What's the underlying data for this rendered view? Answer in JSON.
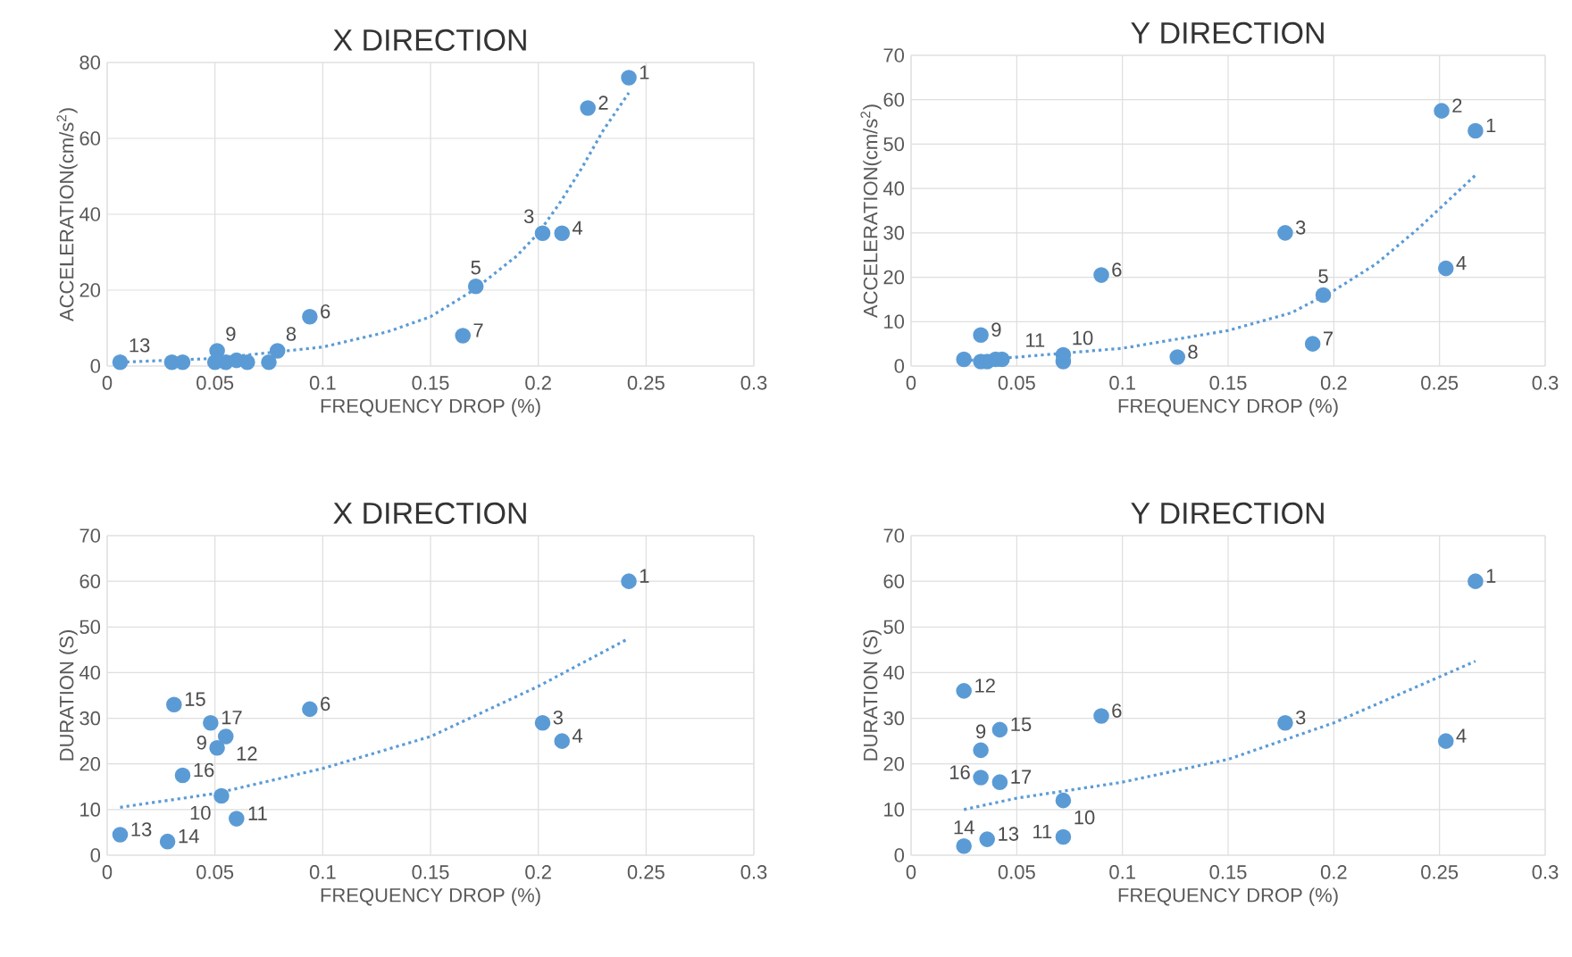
{
  "chart_data": [
    {
      "type": "scatter",
      "title": "X DIRECTION",
      "xlabel": "FREQUENCY DROP (%)",
      "ylabel": "ACCELERATION(cm/s$^{2}$)",
      "xlim": [
        0,
        0.3
      ],
      "ylim": [
        0,
        80
      ],
      "xticks": [
        0,
        0.05,
        0.1,
        0.15,
        0.2,
        0.25,
        0.3
      ],
      "yticks": [
        0,
        20,
        40,
        60,
        80
      ],
      "grid": true,
      "series": [
        {
          "marker": "circle",
          "color": "#5b9bd5",
          "x": [
            0.242,
            0.223,
            0.202,
            0.211,
            0.171,
            0.094,
            0.165,
            0.079,
            0.051,
            0.006,
            0.03,
            0.035,
            0.05,
            0.055,
            0.06,
            0.065,
            0.075
          ],
          "values": [
            76,
            68,
            35,
            35,
            21,
            13,
            8,
            4,
            4,
            1,
            1,
            1,
            1,
            1,
            1.5,
            1,
            1
          ]
        },
        {
          "type": "line",
          "line_style": "dotted",
          "marker": "none",
          "color": "#5b9bd5",
          "x": [
            0.006,
            0.05,
            0.1,
            0.13,
            0.15,
            0.17,
            0.19,
            0.2,
            0.21,
            0.22,
            0.23,
            0.242
          ],
          "values": [
            1,
            2,
            5,
            9,
            13,
            20,
            29,
            35,
            43,
            52,
            62,
            72
          ]
        }
      ],
      "annotations": [
        {
          "text": "1",
          "x": 0.242,
          "y": 76
        },
        {
          "text": "2",
          "x": 0.223,
          "y": 68
        },
        {
          "text": "3",
          "x": 0.202,
          "y": 35
        },
        {
          "text": "4",
          "x": 0.211,
          "y": 35
        },
        {
          "text": "5",
          "x": 0.171,
          "y": 21
        },
        {
          "text": "6",
          "x": 0.094,
          "y": 13
        },
        {
          "text": "7",
          "x": 0.165,
          "y": 8
        },
        {
          "text": "8",
          "x": 0.079,
          "y": 4
        },
        {
          "text": "9",
          "x": 0.051,
          "y": 4
        },
        {
          "text": "13",
          "x": 0.006,
          "y": 1
        }
      ]
    },
    {
      "type": "scatter",
      "title": "Y DIRECTION",
      "xlabel": "FREQUENCY DROP (%)",
      "ylabel": "ACCELERATION(cm/s$^{2}$)",
      "xlim": [
        0,
        0.3
      ],
      "ylim": [
        0,
        70
      ],
      "xticks": [
        0,
        0.05,
        0.1,
        0.15,
        0.2,
        0.25,
        0.3
      ],
      "yticks": [
        0,
        10,
        20,
        30,
        40,
        50,
        60,
        70
      ],
      "grid": true,
      "series": [
        {
          "marker": "circle",
          "color": "#5b9bd5",
          "x": [
            0.267,
            0.251,
            0.177,
            0.253,
            0.195,
            0.09,
            0.19,
            0.126,
            0.033,
            0.072,
            0.072,
            0.025,
            0.033,
            0.036,
            0.04,
            0.043
          ],
          "values": [
            53,
            57.5,
            30,
            22,
            16,
            20.5,
            5,
            2,
            7,
            2.5,
            1,
            1.5,
            1,
            1,
            1.5,
            1.5
          ]
        },
        {
          "type": "line",
          "line_style": "dotted",
          "marker": "none",
          "color": "#5b9bd5",
          "x": [
            0.025,
            0.05,
            0.1,
            0.15,
            0.18,
            0.2,
            0.22,
            0.24,
            0.267
          ],
          "values": [
            1.2,
            2,
            4,
            8,
            12,
            17,
            23,
            31,
            43
          ]
        }
      ],
      "annotations": [
        {
          "text": "1",
          "x": 0.267,
          "y": 53
        },
        {
          "text": "2",
          "x": 0.251,
          "y": 57.5
        },
        {
          "text": "3",
          "x": 0.177,
          "y": 30
        },
        {
          "text": "4",
          "x": 0.253,
          "y": 22
        },
        {
          "text": "5",
          "x": 0.195,
          "y": 16
        },
        {
          "text": "6",
          "x": 0.09,
          "y": 20.5
        },
        {
          "text": "7",
          "x": 0.19,
          "y": 5
        },
        {
          "text": "8",
          "x": 0.126,
          "y": 2
        },
        {
          "text": "9",
          "x": 0.033,
          "y": 7
        },
        {
          "text": "10",
          "x": 0.072,
          "y": 2.5
        },
        {
          "text": "11",
          "x": 0.072,
          "y": 1
        }
      ]
    },
    {
      "type": "scatter",
      "title": "X DIRECTION",
      "xlabel": "FREQUENCY DROP (%)",
      "ylabel": "DURATION (S)",
      "xlim": [
        0,
        0.3
      ],
      "ylim": [
        0,
        70
      ],
      "xticks": [
        0,
        0.05,
        0.1,
        0.15,
        0.2,
        0.25,
        0.3
      ],
      "yticks": [
        0,
        10,
        20,
        30,
        40,
        50,
        60,
        70
      ],
      "grid": true,
      "series": [
        {
          "marker": "circle",
          "color": "#5b9bd5",
          "x": [
            0.242,
            0.202,
            0.211,
            0.094,
            0.031,
            0.048,
            0.055,
            0.051,
            0.035,
            0.053,
            0.06,
            0.006,
            0.028
          ],
          "values": [
            60,
            29,
            25,
            32,
            33,
            29,
            26,
            23.5,
            17.5,
            13,
            8,
            4.5,
            3
          ]
        },
        {
          "type": "line",
          "line_style": "dotted",
          "marker": "none",
          "color": "#5b9bd5",
          "x": [
            0.006,
            0.05,
            0.1,
            0.15,
            0.2,
            0.242
          ],
          "values": [
            10.5,
            13.5,
            19,
            26,
            37,
            47.5
          ]
        }
      ],
      "annotations": [
        {
          "text": "1",
          "x": 0.242,
          "y": 60
        },
        {
          "text": "3",
          "x": 0.202,
          "y": 29
        },
        {
          "text": "4",
          "x": 0.211,
          "y": 25
        },
        {
          "text": "6",
          "x": 0.094,
          "y": 32
        },
        {
          "text": "15",
          "x": 0.031,
          "y": 33
        },
        {
          "text": "17",
          "x": 0.048,
          "y": 29
        },
        {
          "text": "12",
          "x": 0.055,
          "y": 26
        },
        {
          "text": "9",
          "x": 0.051,
          "y": 23.5
        },
        {
          "text": "16",
          "x": 0.035,
          "y": 17.5
        },
        {
          "text": "10",
          "x": 0.053,
          "y": 13
        },
        {
          "text": "11",
          "x": 0.06,
          "y": 8
        },
        {
          "text": "13",
          "x": 0.006,
          "y": 4.5
        },
        {
          "text": "14",
          "x": 0.028,
          "y": 3
        }
      ]
    },
    {
      "type": "scatter",
      "title": "Y DIRECTION",
      "xlabel": "FREQUENCY DROP (%)",
      "ylabel": "DURATION (S)",
      "xlim": [
        0,
        0.3
      ],
      "ylim": [
        0,
        70
      ],
      "xticks": [
        0,
        0.05,
        0.1,
        0.15,
        0.2,
        0.25,
        0.3
      ],
      "yticks": [
        0,
        10,
        20,
        30,
        40,
        50,
        60,
        70
      ],
      "grid": true,
      "series": [
        {
          "marker": "circle",
          "color": "#5b9bd5",
          "x": [
            0.267,
            0.177,
            0.253,
            0.09,
            0.025,
            0.042,
            0.033,
            0.042,
            0.033,
            0.072,
            0.072,
            0.036,
            0.025
          ],
          "values": [
            60,
            29,
            25,
            30.5,
            36,
            27.5,
            23,
            16,
            17,
            12,
            4,
            3.5,
            2
          ]
        },
        {
          "type": "line",
          "line_style": "dotted",
          "marker": "none",
          "color": "#5b9bd5",
          "x": [
            0.025,
            0.05,
            0.1,
            0.15,
            0.2,
            0.267
          ],
          "values": [
            10,
            12.5,
            16,
            21,
            29,
            42.5
          ]
        }
      ],
      "annotations": [
        {
          "text": "1",
          "x": 0.267,
          "y": 60
        },
        {
          "text": "3",
          "x": 0.177,
          "y": 29
        },
        {
          "text": "4",
          "x": 0.253,
          "y": 25
        },
        {
          "text": "6",
          "x": 0.09,
          "y": 30.5
        },
        {
          "text": "12",
          "x": 0.025,
          "y": 36
        },
        {
          "text": "15",
          "x": 0.042,
          "y": 27.5
        },
        {
          "text": "9",
          "x": 0.033,
          "y": 23
        },
        {
          "text": "17",
          "x": 0.042,
          "y": 16
        },
        {
          "text": "16",
          "x": 0.033,
          "y": 17
        },
        {
          "text": "10",
          "x": 0.072,
          "y": 12
        },
        {
          "text": "11",
          "x": 0.072,
          "y": 4
        },
        {
          "text": "13",
          "x": 0.036,
          "y": 3.5
        },
        {
          "text": "14",
          "x": 0.025,
          "y": 2
        }
      ]
    }
  ]
}
